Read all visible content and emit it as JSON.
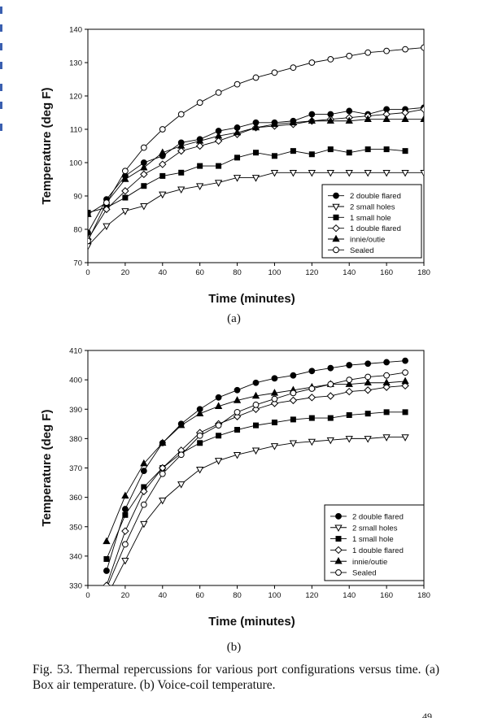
{
  "chart_data": [
    {
      "type": "line",
      "panel_label": "(a)",
      "xlabel": "Time (minutes)",
      "ylabel": "Temperature (deg F)",
      "xlim": [
        0,
        180
      ],
      "ylim": [
        70,
        140
      ],
      "xticks": [
        0,
        20,
        40,
        60,
        80,
        100,
        120,
        140,
        160,
        180
      ],
      "yticks": [
        70,
        80,
        90,
        100,
        110,
        120,
        130,
        140
      ],
      "grid": false,
      "legend_position": "lower-right",
      "series": [
        {
          "name": "2 double flared",
          "marker": "filled-circle",
          "x": [
            0,
            10,
            20,
            30,
            40,
            50,
            60,
            70,
            80,
            90,
            100,
            110,
            120,
            130,
            140,
            150,
            160,
            170,
            180
          ],
          "y": [
            79,
            89,
            96,
            100,
            102,
            106,
            107,
            109.5,
            110.5,
            112,
            112,
            112.5,
            114.5,
            114.5,
            115.5,
            114.5,
            116,
            116,
            116.5
          ]
        },
        {
          "name": "2 small holes",
          "marker": "open-triangle-down",
          "x": [
            0,
            10,
            20,
            30,
            40,
            50,
            60,
            70,
            80,
            90,
            100,
            110,
            120,
            130,
            140,
            150,
            160,
            170,
            180
          ],
          "y": [
            75,
            81,
            85.5,
            87,
            90.5,
            92,
            93,
            94,
            95.5,
            95.5,
            97,
            97,
            97,
            97,
            97,
            97,
            97,
            97,
            97
          ]
        },
        {
          "name": "1 small hole",
          "marker": "filled-square",
          "x": [
            0,
            10,
            20,
            30,
            40,
            50,
            60,
            70,
            80,
            90,
            100,
            110,
            120,
            130,
            140,
            150,
            160,
            170
          ],
          "y": [
            85,
            86.5,
            89.5,
            93,
            96,
            97,
            99,
            99,
            101.5,
            103,
            102,
            103.5,
            102.5,
            104,
            103,
            104,
            104,
            103.5
          ]
        },
        {
          "name": "1 double flared",
          "marker": "open-diamond",
          "x": [
            0,
            10,
            20,
            30,
            40,
            50,
            60,
            70,
            80,
            90,
            100,
            110,
            120,
            130,
            140,
            150,
            160,
            170,
            180
          ],
          "y": [
            77,
            86,
            91.5,
            96.5,
            99.5,
            103.5,
            105,
            106.5,
            108.5,
            110.5,
            111,
            111.5,
            112.5,
            113,
            113.5,
            114,
            114.5,
            115,
            116
          ]
        },
        {
          "name": "innie/outie",
          "marker": "filled-triangle-up",
          "x": [
            0,
            10,
            20,
            30,
            40,
            50,
            60,
            70,
            80,
            90,
            100,
            110,
            120,
            130,
            140,
            150,
            160,
            170,
            180
          ],
          "y": [
            84.5,
            88,
            95,
            98.5,
            103,
            105,
            106.5,
            108,
            109,
            110.5,
            111.5,
            112,
            112.5,
            112.5,
            112.5,
            113,
            113,
            113,
            113
          ]
        },
        {
          "name": "Sealed",
          "marker": "open-circle",
          "x": [
            0,
            10,
            20,
            30,
            40,
            50,
            60,
            70,
            80,
            90,
            100,
            110,
            120,
            130,
            140,
            150,
            160,
            170,
            180
          ],
          "y": [
            76.5,
            88,
            97.5,
            104.5,
            110,
            114.5,
            118,
            121,
            123.5,
            125.5,
            127,
            128.5,
            130,
            131,
            132,
            133,
            133.5,
            134,
            134.5
          ]
        }
      ]
    },
    {
      "type": "line",
      "panel_label": "(b)",
      "xlabel": "Time (minutes)",
      "ylabel": "Temperature (deg F)",
      "xlim": [
        0,
        180
      ],
      "ylim": [
        330,
        410
      ],
      "xticks": [
        0,
        20,
        40,
        60,
        80,
        100,
        120,
        140,
        160,
        180
      ],
      "yticks": [
        330,
        340,
        350,
        360,
        370,
        380,
        390,
        400,
        410
      ],
      "grid": false,
      "legend_position": "lower-right",
      "series": [
        {
          "name": "2 double flared",
          "marker": "filled-circle",
          "x": [
            10,
            20,
            30,
            40,
            50,
            60,
            70,
            80,
            90,
            100,
            110,
            120,
            130,
            140,
            150,
            160,
            170
          ],
          "y": [
            335,
            356,
            369,
            378.5,
            385,
            390,
            394,
            396.5,
            399,
            400.5,
            401.5,
            403,
            404,
            405,
            405.5,
            406,
            406.5
          ]
        },
        {
          "name": "2 small holes",
          "marker": "open-triangle-down",
          "x": [
            10,
            20,
            30,
            40,
            50,
            60,
            70,
            80,
            90,
            100,
            110,
            120,
            130,
            140,
            150,
            160,
            170
          ],
          "y": [
            326,
            338.5,
            351,
            359,
            364.5,
            369.5,
            372.5,
            374.5,
            376,
            377.5,
            378.5,
            379,
            379.5,
            380,
            380,
            380.5,
            380.5
          ]
        },
        {
          "name": "1 small hole",
          "marker": "filled-square",
          "x": [
            10,
            20,
            30,
            40,
            50,
            60,
            70,
            80,
            90,
            100,
            110,
            120,
            130,
            140,
            150,
            160,
            170
          ],
          "y": [
            339,
            354,
            363.5,
            370,
            375,
            378.5,
            381,
            383,
            384.5,
            385.5,
            386.5,
            387,
            387,
            388,
            388.5,
            389,
            389
          ]
        },
        {
          "name": "1 double flared",
          "marker": "open-diamond",
          "x": [
            10,
            20,
            30,
            40,
            50,
            60,
            70,
            80,
            90,
            100,
            110,
            120,
            130,
            140,
            150,
            160,
            170
          ],
          "y": [
            330,
            348.5,
            362,
            370,
            376,
            382,
            385,
            387.5,
            390,
            392,
            393,
            394,
            394.5,
            396,
            396.5,
            397.5,
            398
          ]
        },
        {
          "name": "innie/outie",
          "marker": "filled-triangle-up",
          "x": [
            10,
            20,
            30,
            40,
            50,
            60,
            70,
            80,
            90,
            100,
            110,
            120,
            130,
            140,
            150,
            160,
            170
          ],
          "y": [
            345,
            360.5,
            371.5,
            378.5,
            384.5,
            388.5,
            391,
            393,
            394.5,
            395.5,
            396.5,
            397.5,
            398.5,
            398.5,
            399,
            399,
            399.5
          ]
        },
        {
          "name": "Sealed",
          "marker": "open-circle",
          "x": [
            10,
            20,
            30,
            40,
            50,
            60,
            70,
            80,
            90,
            100,
            110,
            120,
            130,
            140,
            150,
            160,
            170
          ],
          "y": [
            329,
            344,
            357.5,
            368,
            374.5,
            381,
            384.5,
            389,
            391.5,
            393.5,
            395.5,
            397,
            398.5,
            400,
            401,
            401.5,
            402.5
          ]
        }
      ]
    }
  ],
  "caption": "Fig. 53. Thermal repercussions for various port configurations versus time. (a) Box air temperature. (b) Voice-coil temperature.",
  "page_number": "49"
}
